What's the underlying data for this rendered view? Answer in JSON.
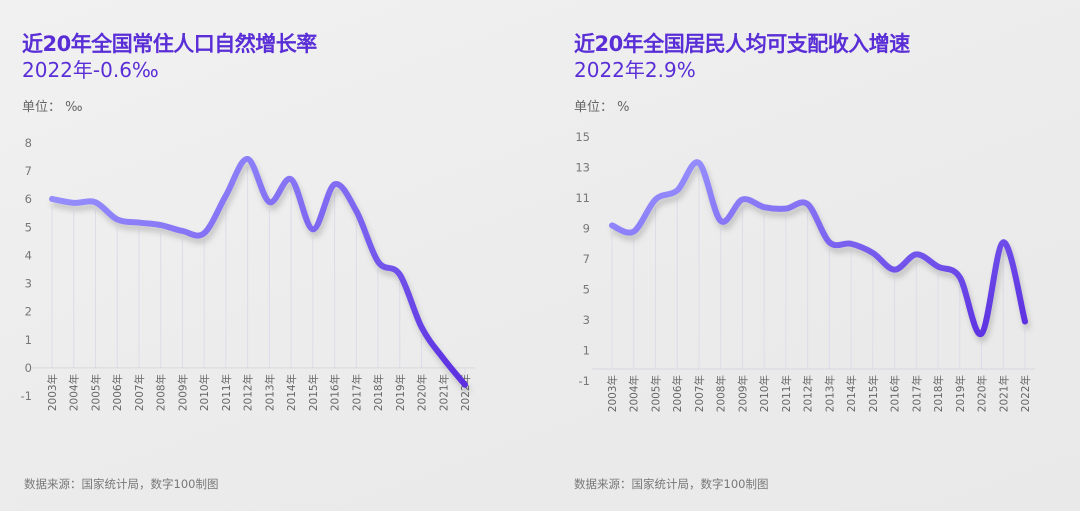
{
  "colors": {
    "title": "#5a2ed6",
    "line_start": "#9b97ff",
    "line_end": "#5b2ee0",
    "grid": "#dcdcea",
    "axis": "#d8d8e0"
  },
  "chart_data": [
    {
      "type": "line",
      "title": "近20年全国常住人口自然增长率",
      "subtitle": "2022年-0.6‰",
      "unit_label": "单位：",
      "unit": "‰",
      "source": "数据来源：国家统计局，数字100制图",
      "xlabel": "",
      "ylabel": "",
      "categories": [
        "2003年",
        "2004年",
        "2005年",
        "2006年",
        "2007年",
        "2008年",
        "2009年",
        "2010年",
        "2011年",
        "2012年",
        "2013年",
        "2014年",
        "2015年",
        "2016年",
        "2017年",
        "2018年",
        "2019年",
        "2020年",
        "2021年",
        "2022年"
      ],
      "series": [
        {
          "name": "人口自然增长率",
          "values": [
            6.01,
            5.87,
            5.89,
            5.28,
            5.17,
            5.08,
            4.87,
            4.79,
            6.13,
            7.43,
            5.9,
            6.71,
            4.93,
            6.53,
            5.58,
            3.78,
            3.32,
            1.45,
            0.34,
            -0.6
          ]
        }
      ],
      "yticks": [
        8,
        7,
        6,
        5,
        4,
        3,
        2,
        1,
        0,
        -1
      ],
      "ylim": [
        -1,
        8
      ],
      "grid": "vertical",
      "legend": "none"
    },
    {
      "type": "line",
      "title": "近20年全国居民人均可支配收入增速",
      "subtitle": "2022年2.9%",
      "unit_label": "单位：",
      "unit": "%",
      "source": "数据来源：国家统计局，数字100制图",
      "xlabel": "",
      "ylabel": "",
      "categories": [
        "2003年",
        "2004年",
        "2005年",
        "2006年",
        "2007年",
        "2008年",
        "2009年",
        "2010年",
        "2011年",
        "2012年",
        "2013年",
        "2014年",
        "2015年",
        "2016年",
        "2017年",
        "2018年",
        "2019年",
        "2020年",
        "2021年",
        "2022年"
      ],
      "series": [
        {
          "name": "人均可支配收入增速",
          "values": [
            9.2,
            8.8,
            10.9,
            11.5,
            13.3,
            9.5,
            10.9,
            10.4,
            10.3,
            10.6,
            8.1,
            8.0,
            7.4,
            6.3,
            7.3,
            6.5,
            5.8,
            2.1,
            8.1,
            2.9
          ]
        }
      ],
      "yticks": [
        15,
        13,
        11,
        9,
        7,
        5,
        3,
        1,
        -1
      ],
      "ylim": [
        -1,
        15
      ],
      "grid": "vertical",
      "legend": "none"
    }
  ]
}
